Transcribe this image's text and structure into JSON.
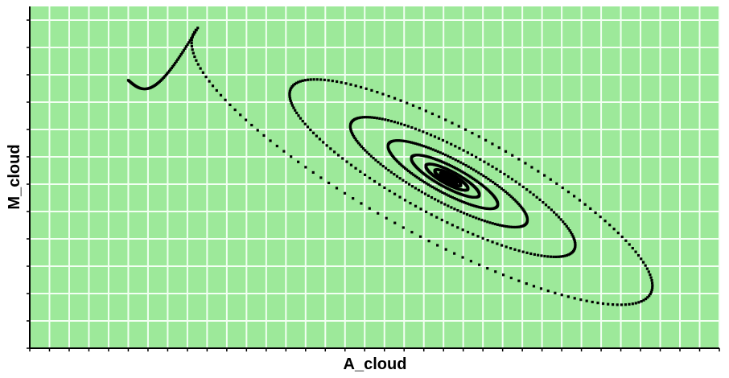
{
  "chart_data": {
    "type": "scatter",
    "title": "",
    "xlabel": "A_cloud",
    "ylabel": "M_cloud",
    "xlim": [
      0,
      35
    ],
    "ylim": [
      0,
      12.5
    ],
    "grid": true,
    "legend": "none",
    "colors": {
      "plot_background": "#9de99a",
      "grid": "#f2fff2",
      "points": "#000000",
      "axis": "#000000"
    },
    "trajectory": {
      "start": [
        5,
        9.8
      ],
      "center": [
        21.3,
        6.2
      ],
      "spiral": {
        "turns": 9,
        "decay_per_turn": 0.62,
        "initial_semi_major": 13.8,
        "initial_semi_minor": 2.95,
        "tilt_degrees": -15,
        "points_per_turn": 170
      }
    }
  }
}
